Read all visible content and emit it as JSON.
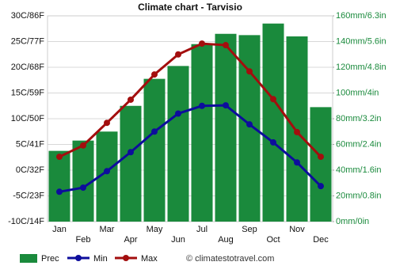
{
  "chart_data": {
    "type": "combo",
    "title": "Climate chart - Tarvisio",
    "categories": [
      "Jan",
      "Feb",
      "Mar",
      "Apr",
      "May",
      "Jun",
      "Jul",
      "Aug",
      "Sep",
      "Oct",
      "Nov",
      "Dec"
    ],
    "series": [
      {
        "name": "Prec",
        "type": "bar",
        "axis": "y2",
        "color": "#1a8a3c",
        "values": [
          55,
          63,
          70,
          90,
          111,
          121,
          138,
          146,
          145,
          154,
          144,
          89
        ]
      },
      {
        "name": "Min",
        "type": "line",
        "color": "#0d0d9c",
        "values": [
          -4.2,
          -3.4,
          -0.2,
          3.5,
          7.5,
          11,
          12.5,
          12.6,
          8.9,
          5.4,
          1.5,
          -3.1
        ]
      },
      {
        "name": "Max",
        "type": "line",
        "color": "#a30e0e",
        "values": [
          2.6,
          4.8,
          9.2,
          13.7,
          18.6,
          22.5,
          24.6,
          24.3,
          19.2,
          13.8,
          7.4,
          2.6
        ]
      }
    ],
    "ylim": [
      -10,
      30
    ],
    "yticks": [
      {
        "value": -10,
        "label": "-10C/14F"
      },
      {
        "value": -5,
        "label": "-5C/23F"
      },
      {
        "value": 0,
        "label": "0C/32F"
      },
      {
        "value": 5,
        "label": "5C/41F"
      },
      {
        "value": 10,
        "label": "10C/50F"
      },
      {
        "value": 15,
        "label": "15C/59F"
      },
      {
        "value": 20,
        "label": "20C/68F"
      },
      {
        "value": 25,
        "label": "25C/77F"
      },
      {
        "value": 30,
        "label": "30C/86F"
      }
    ],
    "y2lim": [
      0,
      160
    ],
    "y2ticks": [
      {
        "value": 0,
        "label": "0mm/0in"
      },
      {
        "value": 20,
        "label": "20mm/0.8in"
      },
      {
        "value": 40,
        "label": "40mm/1.6in"
      },
      {
        "value": 60,
        "label": "60mm/2.4in"
      },
      {
        "value": 80,
        "label": "80mm/3.2in"
      },
      {
        "value": 100,
        "label": "100mm/4in"
      },
      {
        "value": 120,
        "label": "120mm/4.8in"
      },
      {
        "value": 140,
        "label": "140mm/5.6in"
      },
      {
        "value": 160,
        "label": "160mm/6.3in"
      }
    ],
    "grid": true,
    "credit": "© climatestotravel.com"
  }
}
